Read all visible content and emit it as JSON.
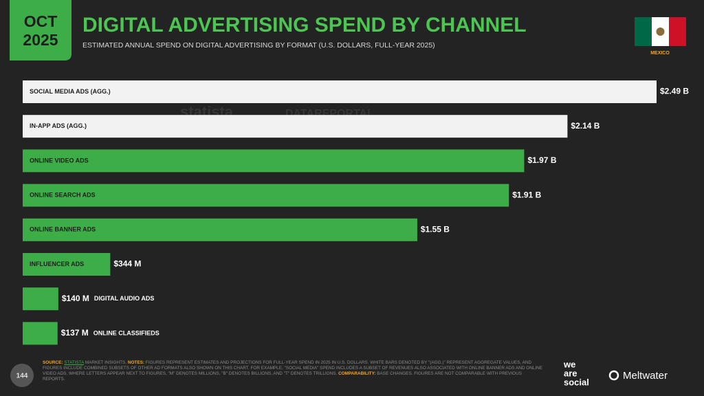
{
  "badge": {
    "month": "OCT",
    "year": "2025"
  },
  "country": "MEXICO",
  "watermarks": [
    "statista",
    "DATAREPORTAL"
  ],
  "chart_data": {
    "type": "hbar",
    "title": "DIGITAL ADVERTISING SPEND BY CHANNEL",
    "subtitle": "ESTIMATED ANNUAL SPEND ON DIGITAL ADVERTISING BY FORMAT (U.S. DOLLARS, FULL-YEAR 2025)",
    "categories": [
      "SOCIAL MEDIA ADS (AGG.)",
      "IN-APP ADS (AGG.)",
      "ONLINE VIDEO ADS",
      "ONLINE SEARCH ADS",
      "ONLINE BANNER ADS",
      "INFLUENCER ADS",
      "DIGITAL AUDIO ADS",
      "ONLINE CLASSIFIEDS"
    ],
    "values": [
      2490000000,
      2140000000,
      1970000000,
      1910000000,
      1550000000,
      344000000,
      140000000,
      137000000
    ],
    "value_labels": [
      "$2.49 B",
      "$2.14 B",
      "$1.97 B",
      "$1.91 B",
      "$1.55 B",
      "$344 M",
      "$140 M",
      "$137 M"
    ],
    "colors": [
      "#f2f2f2",
      "#f2f2f2",
      "#3dae47",
      "#3dae47",
      "#3dae47",
      "#3dae47",
      "#3dae47",
      "#3dae47"
    ]
  },
  "footer": {
    "source_label": "SOURCE:",
    "source_link": "STATISTA",
    "source_text": "MARKET INSIGHTS.",
    "notes_label": "NOTES:",
    "notes_text": "FIGURES REPRESENT ESTIMATES AND PROJECTIONS FOR FULL-YEAR SPEND IN 2025 IN U.S. DOLLARS. WHITE BARS DENOTED BY \"(AGG.)\" REPRESENT AGGREGATE VALUES, AND FIGURES INCLUDE COMBINED SUBSETS OF OTHER AD FORMATS ALSO SHOWN ON THIS CHART. FOR EXAMPLE, \"SOCIAL MEDIA\" SPEND INCLUDES A SUBSET OF REVENUES ALSO ASSOCIATED WITH ONLINE BANNER ADS AND ONLINE VIDEO ADS. WHERE LETTERS APPEAR NEXT TO FIGURES, \"M\" DENOTES MILLIONS, \"B\" DENOTES BILLIONS, AND \"T\" DENOTES TRILLIONS.",
    "comparability_label": "COMPARABILITY:",
    "comparability_text": "BASE CHANGES. FIGURES ARE NOT COMPARABLE WITH PREVIOUS REPORTS.",
    "page_number": "144",
    "logo_lines": [
      "we",
      "are",
      "social"
    ],
    "partner": "Meltwater"
  }
}
